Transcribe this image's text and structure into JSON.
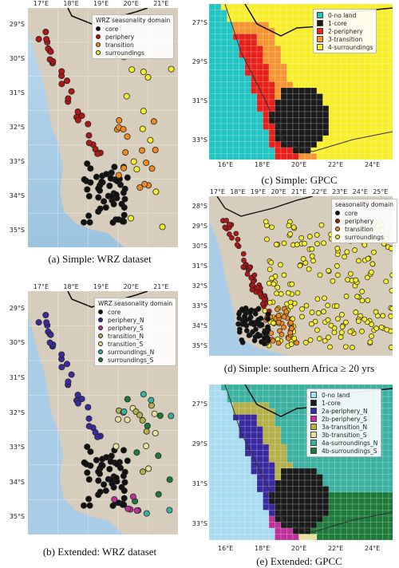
{
  "panels": [
    {
      "id": "a",
      "caption": "(a) Simple: WRZ dataset",
      "legend_title": "WRZ seasonality domain",
      "legend": [
        {
          "label": "core",
          "color": "#111111"
        },
        {
          "label": "periphery",
          "color": "#b01818"
        },
        {
          "label": "transition",
          "color": "#f08a20"
        },
        {
          "label": "surroundings",
          "color": "#f6ef2a"
        }
      ],
      "x_ticks": [
        "17°E",
        "18°E",
        "19°E",
        "20°E",
        "21°E"
      ],
      "y_ticks": [
        "29°S",
        "30°S",
        "31°S",
        "32°S",
        "33°S",
        "34°S",
        "35°S"
      ]
    },
    {
      "id": "b",
      "caption": "(b) Extended: WRZ dataset",
      "legend_title": "WRZ seasonality domain",
      "legend": [
        {
          "label": "core",
          "color": "#111111"
        },
        {
          "label": "periphery_N",
          "color": "#3a2aa0"
        },
        {
          "label": "periphery_S",
          "color": "#c0309a"
        },
        {
          "label": "transition_N",
          "color": "#b5b04a"
        },
        {
          "label": "transition_S",
          "color": "#e8dfa0"
        },
        {
          "label": "surroundings_N",
          "color": "#3ab0a0"
        },
        {
          "label": "surroundings_S",
          "color": "#1e7a3a"
        }
      ],
      "x_ticks": [
        "17°E",
        "18°E",
        "19°E",
        "20°E",
        "21°E"
      ],
      "y_ticks": [
        "29°S",
        "30°S",
        "31°S",
        "32°S",
        "33°S",
        "34°S",
        "35°S"
      ]
    },
    {
      "id": "c",
      "caption": "(c) Simple: GPCC",
      "legend": [
        {
          "label": "0-no land",
          "color": "#22c4c4"
        },
        {
          "label": "1-core",
          "color": "#1a1a1a"
        },
        {
          "label": "2-periphery",
          "color": "#e8201a"
        },
        {
          "label": "3-transition",
          "color": "#f59430"
        },
        {
          "label": "4-surroundings",
          "color": "#f8ee2a"
        }
      ],
      "x_ticks": [
        "16°E",
        "18°E",
        "20°E",
        "22°E",
        "24°E"
      ],
      "y_ticks": [
        "27°S",
        "29°S",
        "31°S",
        "33°S"
      ]
    },
    {
      "id": "d",
      "caption": "(d) Simple: southern Africa ≥ 20 yrs",
      "legend_title": "seasonality domain",
      "legend": [
        {
          "label": "core",
          "color": "#111111"
        },
        {
          "label": "periphery",
          "color": "#b01818"
        },
        {
          "label": "transition",
          "color": "#f08a20"
        },
        {
          "label": "surroundings",
          "color": "#f6ef2a"
        }
      ],
      "x_ticks": [
        "17°E",
        "18°E",
        "19°E",
        "20°E",
        "21°E",
        "22°E",
        "23°E",
        "24°E",
        "25°E"
      ],
      "y_ticks": [
        "28°S",
        "29°S",
        "30°S",
        "31°S",
        "32°S",
        "33°S",
        "34°S",
        "35°S"
      ]
    },
    {
      "id": "e",
      "caption": "(e) Extended: GPCC",
      "legend": [
        {
          "label": "0-no land",
          "color": "#a8dcf0"
        },
        {
          "label": "1-core",
          "color": "#1a1a1a"
        },
        {
          "label": "2a-periphery_N",
          "color": "#3a2aa0"
        },
        {
          "label": "2b-periphery_S",
          "color": "#c0309a"
        },
        {
          "label": "3a-transition_N",
          "color": "#b5b04a"
        },
        {
          "label": "3b-transition_S",
          "color": "#e8dfa0"
        },
        {
          "label": "4a-surroundings_N",
          "color": "#3ab0a0"
        },
        {
          "label": "4b-surroundings_S",
          "color": "#1e7a3a"
        }
      ],
      "x_ticks": [
        "16°E",
        "18°E",
        "20°E",
        "22°E",
        "24°E"
      ],
      "y_ticks": [
        "27°S",
        "29°S",
        "31°S",
        "33°S"
      ]
    }
  ]
}
